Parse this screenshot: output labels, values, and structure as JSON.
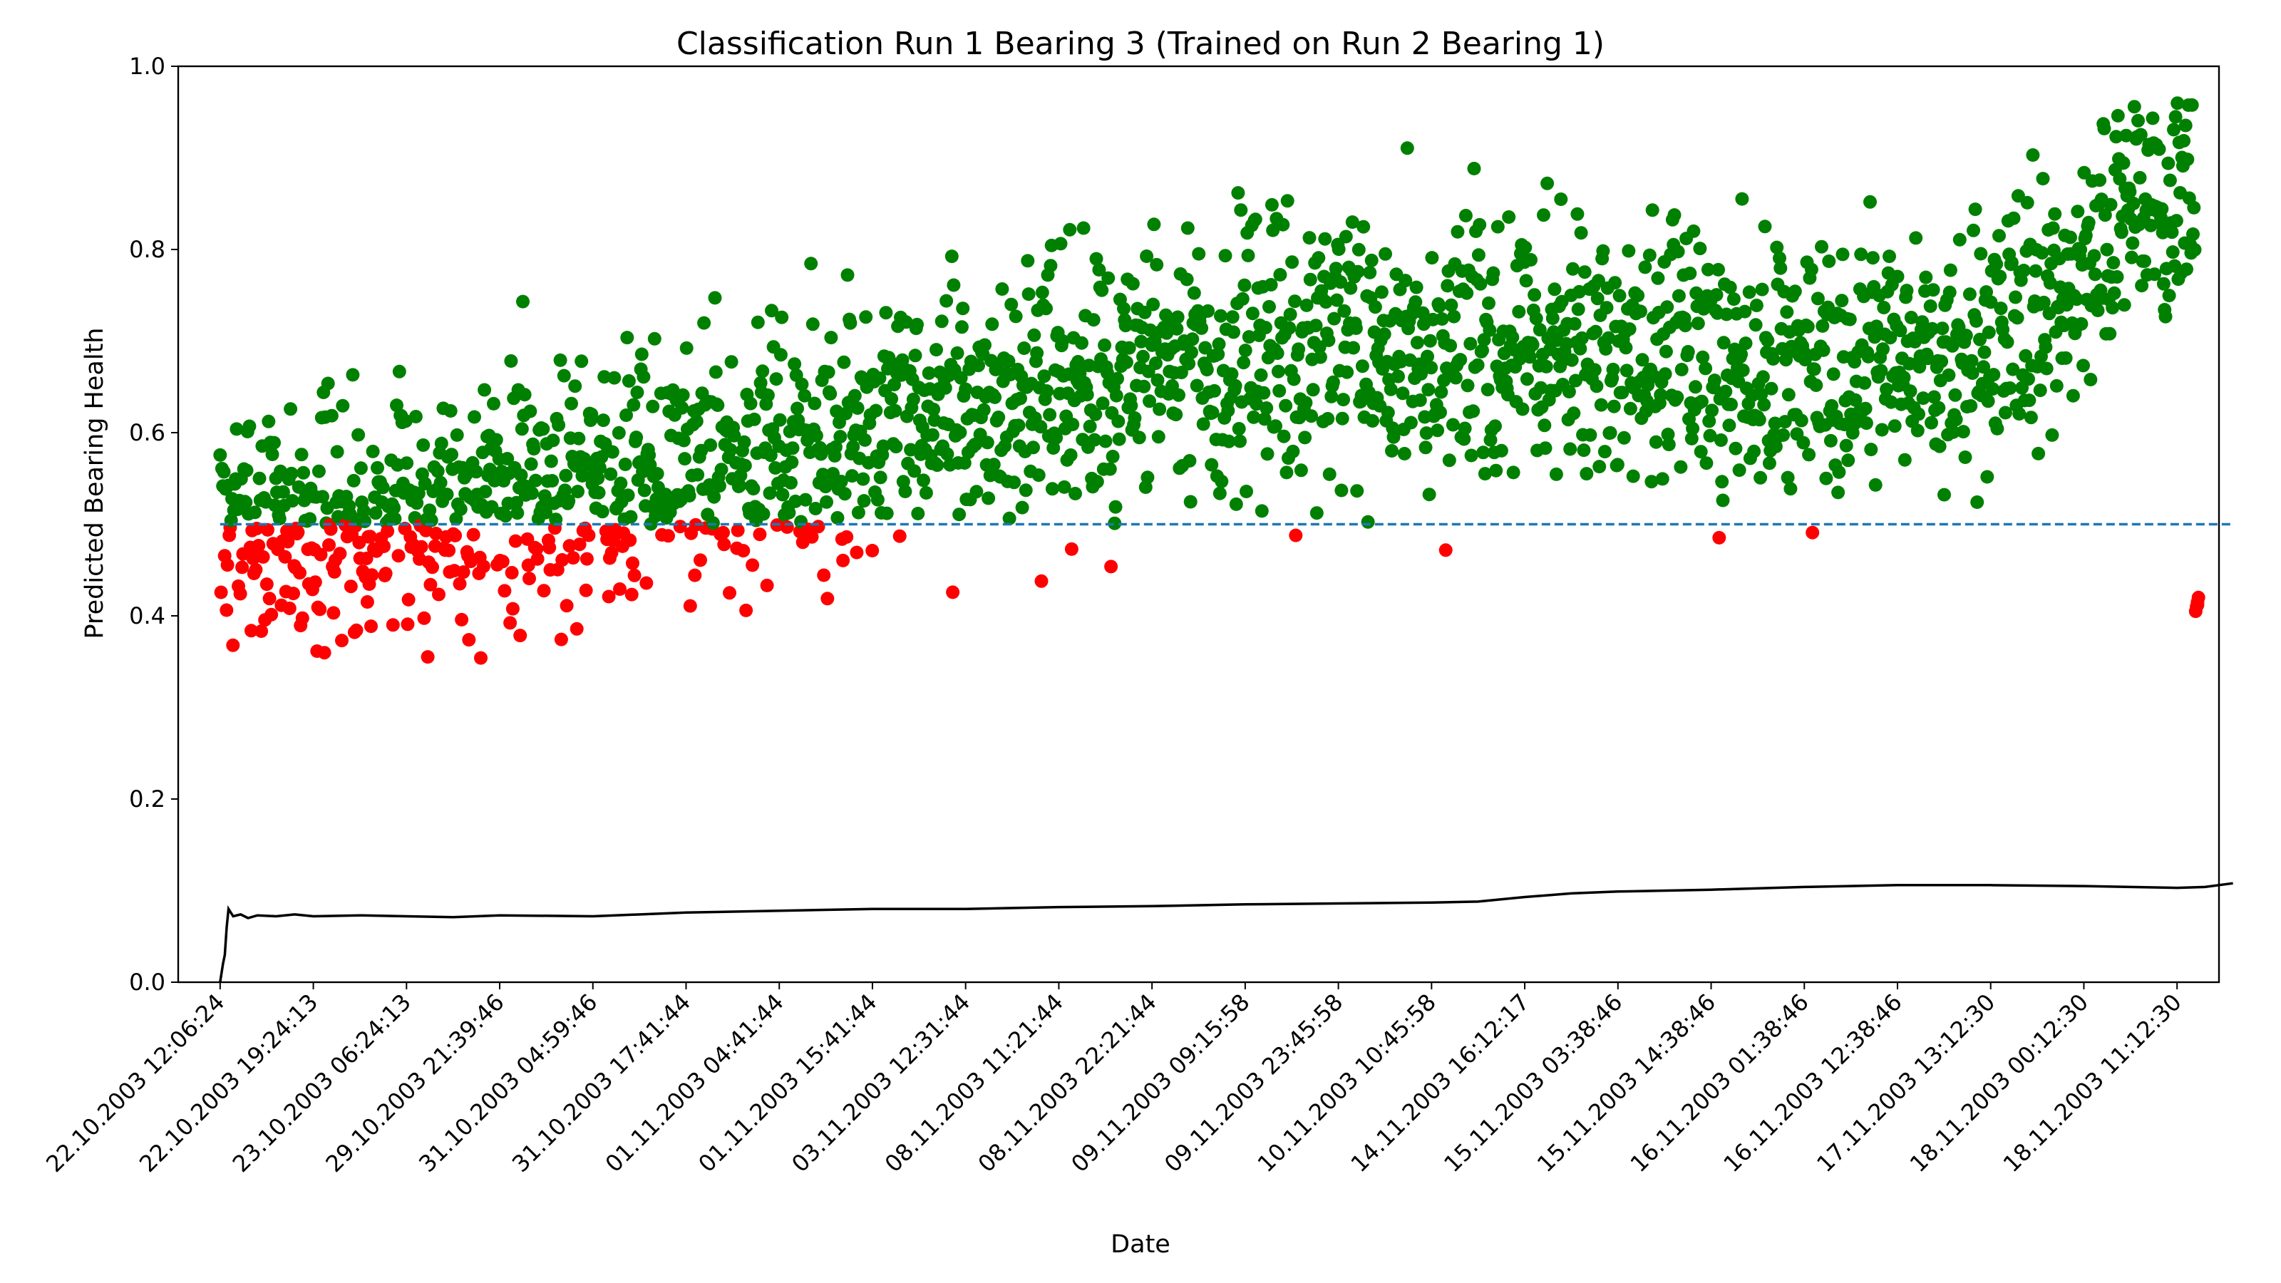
{
  "chart_data": {
    "type": "scatter",
    "title": "Classification Run 1 Bearing 3 (Trained on Run 2 Bearing 1)",
    "xlabel": "Date",
    "ylabel": "Predicted Bearing Health",
    "ylim": [
      0,
      1.0
    ],
    "yticks": [
      "0.0",
      "0.2",
      "0.4",
      "0.6",
      "0.8",
      "1.0"
    ],
    "x_range": [
      -45,
      2145
    ],
    "x_is_sample_index": true,
    "xticks": [
      {
        "x": 0,
        "label": "22.10.2003 12:06:24"
      },
      {
        "x": 100,
        "label": "22.10.2003 19:24:13"
      },
      {
        "x": 200,
        "label": "23.10.2003 06:24:13"
      },
      {
        "x": 300,
        "label": "29.10.2003 21:39:46"
      },
      {
        "x": 400,
        "label": "31.10.2003 04:59:46"
      },
      {
        "x": 500,
        "label": "31.10.2003 17:41:44"
      },
      {
        "x": 600,
        "label": "01.11.2003 04:41:44"
      },
      {
        "x": 700,
        "label": "01.11.2003 15:41:44"
      },
      {
        "x": 800,
        "label": "03.11.2003 12:31:44"
      },
      {
        "x": 900,
        "label": "08.11.2003 11:21:44"
      },
      {
        "x": 1000,
        "label": "08.11.2003 22:21:44"
      },
      {
        "x": 1100,
        "label": "09.11.2003 09:15:58"
      },
      {
        "x": 1200,
        "label": "09.11.2003 23:45:58"
      },
      {
        "x": 1300,
        "label": "10.11.2003 10:45:58"
      },
      {
        "x": 1400,
        "label": "14.11.2003 16:12:17"
      },
      {
        "x": 1500,
        "label": "15.11.2003 03:38:46"
      },
      {
        "x": 1600,
        "label": "15.11.2003 14:38:46"
      },
      {
        "x": 1700,
        "label": "16.11.2003 01:38:46"
      },
      {
        "x": 1800,
        "label": "16.11.2003 12:38:46"
      },
      {
        "x": 1900,
        "label": "17.11.2003 13:12:30"
      },
      {
        "x": 2000,
        "label": "18.11.2003 00:12:30"
      },
      {
        "x": 2100,
        "label": "18.11.2003 11:12:30"
      }
    ],
    "threshold": {
      "y": 0.5,
      "color": "#1f77b4",
      "style": "dashed"
    },
    "series": [
      {
        "kind": "points",
        "rule": "y >= 0.5",
        "color": "#008000",
        "marker": "circle"
      },
      {
        "kind": "points",
        "rule": "y < 0.5",
        "color": "#ff0000",
        "marker": "circle"
      },
      {
        "kind": "line",
        "color": "#000000"
      }
    ],
    "scatter_trend": {
      "n_points": 2160,
      "seed": 7,
      "mean": [
        [
          0,
          0.5
        ],
        [
          100,
          0.5
        ],
        [
          200,
          0.52
        ],
        [
          400,
          0.55
        ],
        [
          600,
          0.58
        ],
        [
          800,
          0.62
        ],
        [
          1000,
          0.66
        ],
        [
          1200,
          0.685
        ],
        [
          1400,
          0.69
        ],
        [
          1600,
          0.675
        ],
        [
          1800,
          0.675
        ],
        [
          1900,
          0.7
        ],
        [
          2000,
          0.77
        ],
        [
          2050,
          0.84
        ],
        [
          2100,
          0.86
        ]
      ],
      "spread": [
        [
          0,
          0.09
        ],
        [
          100,
          0.09
        ],
        [
          300,
          0.1
        ],
        [
          700,
          0.1
        ],
        [
          1100,
          0.11
        ],
        [
          1500,
          0.1
        ],
        [
          1900,
          0.09
        ],
        [
          2100,
          0.1
        ]
      ],
      "floor_red": [
        [
          0,
          0.33
        ],
        [
          300,
          0.35
        ],
        [
          600,
          0.38
        ],
        [
          900,
          0.4
        ],
        [
          1200,
          0.42
        ],
        [
          2100,
          0.4
        ]
      ],
      "outliers": [
        {
          "x": 2120,
          "y": 0.405
        },
        {
          "x": 2121,
          "y": 0.41
        },
        {
          "x": 2122,
          "y": 0.415
        },
        {
          "x": 2123,
          "y": 0.42
        },
        {
          "x": 2122,
          "y": 0.412
        }
      ]
    },
    "line_points": [
      [
        0,
        0.0
      ],
      [
        3,
        0.02
      ],
      [
        5,
        0.03
      ],
      [
        7,
        0.06
      ],
      [
        9,
        0.08
      ],
      [
        14,
        0.072
      ],
      [
        22,
        0.074
      ],
      [
        30,
        0.07
      ],
      [
        40,
        0.073
      ],
      [
        60,
        0.072
      ],
      [
        80,
        0.074
      ],
      [
        100,
        0.072
      ],
      [
        150,
        0.073
      ],
      [
        200,
        0.072
      ],
      [
        250,
        0.071
      ],
      [
        300,
        0.073
      ],
      [
        400,
        0.072
      ],
      [
        500,
        0.076
      ],
      [
        600,
        0.078
      ],
      [
        700,
        0.08
      ],
      [
        800,
        0.08
      ],
      [
        900,
        0.082
      ],
      [
        1000,
        0.083
      ],
      [
        1100,
        0.085
      ],
      [
        1200,
        0.086
      ],
      [
        1300,
        0.087
      ],
      [
        1350,
        0.088
      ],
      [
        1400,
        0.093
      ],
      [
        1450,
        0.097
      ],
      [
        1500,
        0.099
      ],
      [
        1600,
        0.101
      ],
      [
        1700,
        0.104
      ],
      [
        1800,
        0.106
      ],
      [
        1900,
        0.106
      ],
      [
        2000,
        0.105
      ],
      [
        2050,
        0.104
      ],
      [
        2100,
        0.103
      ],
      [
        2130,
        0.104
      ],
      [
        2160,
        0.108
      ]
    ],
    "grid": false,
    "legend": "none"
  }
}
